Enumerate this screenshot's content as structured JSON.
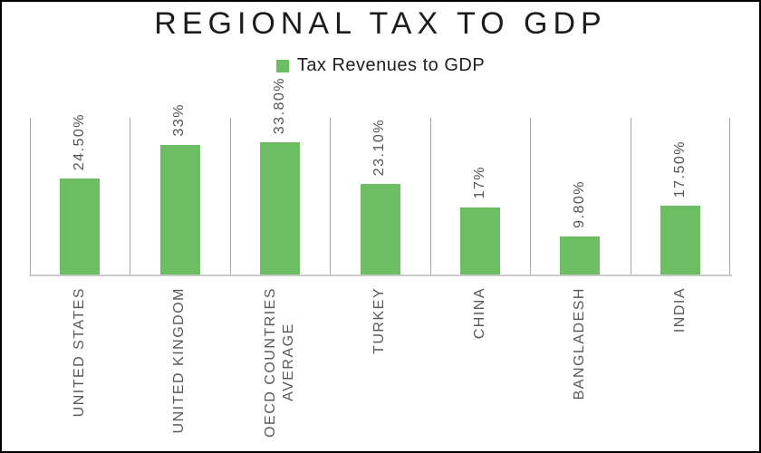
{
  "chart_data": {
    "type": "bar",
    "title": "REGIONAL TAX TO GDP",
    "legend": {
      "label": "Tax Revenues to GDP",
      "swatch_color": "#6cbe62",
      "position": "top-center"
    },
    "series_name": "Tax Revenues to GDP",
    "categories": [
      "UNITED STATES",
      "UNITED KINGDOM",
      "OECD COUNTRIES\nAVERAGE",
      "TURKEY",
      "CHINA",
      "BANGLADESH",
      "INDIA"
    ],
    "values": [
      24.5,
      33,
      33.8,
      23.1,
      17,
      9.8,
      17.5
    ],
    "value_labels": [
      "24.50%",
      "33%",
      "33.80%",
      "23.10%",
      "17%",
      "9.80%",
      "17.50%"
    ],
    "ylim": [
      0,
      40
    ],
    "grid": "vertical category separator lines only",
    "bar_color": "#6cbe62",
    "gridline_color": "#a6a6a6",
    "axis_line_color": "#c9c9c9",
    "label_color": "#595959",
    "title_color": "#1c1c1c",
    "frame_border_color": "#000000",
    "background_color": "#ffffff"
  }
}
